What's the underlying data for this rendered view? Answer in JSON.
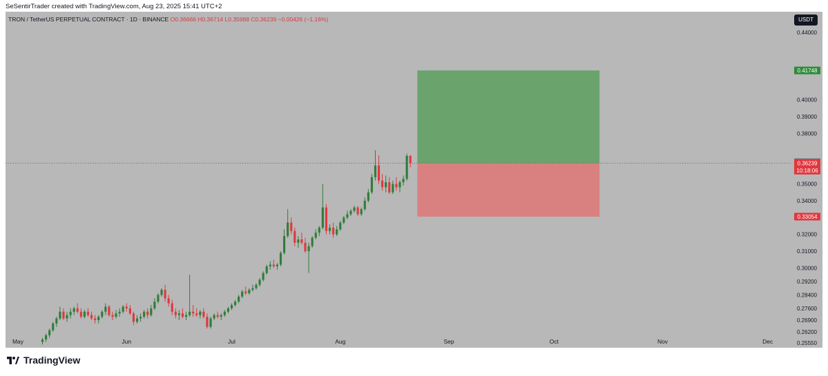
{
  "header": {
    "credit": "SeSentirTrader created with TradingView.com, Aug 23, 2025 15:41 UTC+2"
  },
  "symbol": {
    "title": "TRON / TetherUS PERPETUAL CONTRACT · 1D · BINANCE",
    "ohlc": "O0.36666 H0.36714 L0.35988 C0.36239 −0.00426 (−1.16%)"
  },
  "currency": "USDT",
  "footer": {
    "brand": "TradingView"
  },
  "colors": {
    "up": "#2f7d3a",
    "down": "#e0383f",
    "profit_zone": "#6aa36b",
    "loss_zone": "#d98080",
    "background": "#b8b8b8"
  },
  "chart_data": {
    "type": "candlestick",
    "timeframe": "1D",
    "x_range": [
      "2025-05-01",
      "2025-12-05"
    ],
    "ylim": [
      0.253,
      0.452
    ],
    "x_ticks": [
      {
        "label": "May",
        "date": "2025-05-01"
      },
      {
        "label": "Jun",
        "date": "2025-06-01"
      },
      {
        "label": "Jul",
        "date": "2025-07-01"
      },
      {
        "label": "Aug",
        "date": "2025-08-01"
      },
      {
        "label": "Sep",
        "date": "2025-09-01"
      },
      {
        "label": "Oct",
        "date": "2025-10-01"
      },
      {
        "label": "Nov",
        "date": "2025-11-01"
      },
      {
        "label": "Dec",
        "date": "2025-12-01"
      }
    ],
    "y_ticks": [
      "0.44000",
      "0.40000",
      "0.39000",
      "0.38000",
      "0.35000",
      "0.34000",
      "0.32000",
      "0.31000",
      "0.30000",
      "0.29200",
      "0.28400",
      "0.27600",
      "0.26900",
      "0.26200",
      "0.25550"
    ],
    "price_labels": [
      {
        "value": 0.41748,
        "text": "0.41748",
        "kind": "target"
      },
      {
        "value": 0.36291,
        "text": "0.36291",
        "kind": "reference"
      },
      {
        "value": 0.36239,
        "text": "0.36239",
        "sub": "10:18:06",
        "kind": "last"
      },
      {
        "value": 0.33054,
        "text": "0.33054",
        "kind": "stop"
      }
    ],
    "last_price": 0.36239,
    "position": {
      "start": "2025-08-23",
      "end": "2025-10-14",
      "entry": 0.36239,
      "target": 0.41748,
      "stop": 0.33054
    },
    "start_date": "2025-05-08",
    "candles": [
      [
        0.256,
        0.2585,
        0.2545,
        0.2575
      ],
      [
        0.2575,
        0.261,
        0.256,
        0.26
      ],
      [
        0.26,
        0.264,
        0.2585,
        0.263
      ],
      [
        0.263,
        0.268,
        0.262,
        0.267
      ],
      [
        0.267,
        0.271,
        0.265,
        0.27
      ],
      [
        0.27,
        0.277,
        0.269,
        0.274
      ],
      [
        0.274,
        0.276,
        0.269,
        0.27
      ],
      [
        0.27,
        0.274,
        0.268,
        0.272
      ],
      [
        0.272,
        0.276,
        0.27,
        0.274
      ],
      [
        0.274,
        0.277,
        0.272,
        0.276
      ],
      [
        0.276,
        0.279,
        0.273,
        0.274
      ],
      [
        0.274,
        0.276,
        0.27,
        0.271
      ],
      [
        0.271,
        0.275,
        0.27,
        0.274
      ],
      [
        0.274,
        0.276,
        0.271,
        0.272
      ],
      [
        0.272,
        0.274,
        0.269,
        0.27
      ],
      [
        0.27,
        0.272,
        0.267,
        0.269
      ],
      [
        0.269,
        0.272,
        0.267,
        0.271
      ],
      [
        0.271,
        0.275,
        0.27,
        0.274
      ],
      [
        0.274,
        0.279,
        0.272,
        0.277
      ],
      [
        0.277,
        0.278,
        0.271,
        0.272
      ],
      [
        0.272,
        0.274,
        0.269,
        0.271
      ],
      [
        0.271,
        0.275,
        0.27,
        0.273
      ],
      [
        0.273,
        0.276,
        0.271,
        0.274
      ],
      [
        0.274,
        0.278,
        0.273,
        0.277
      ],
      [
        0.277,
        0.279,
        0.274,
        0.276
      ],
      [
        0.276,
        0.278,
        0.272,
        0.273
      ],
      [
        0.273,
        0.274,
        0.266,
        0.268
      ],
      [
        0.268,
        0.272,
        0.267,
        0.27
      ],
      [
        0.27,
        0.273,
        0.268,
        0.271
      ],
      [
        0.271,
        0.275,
        0.27,
        0.274
      ],
      [
        0.274,
        0.276,
        0.27,
        0.272
      ],
      [
        0.272,
        0.278,
        0.271,
        0.276
      ],
      [
        0.276,
        0.282,
        0.275,
        0.28
      ],
      [
        0.28,
        0.285,
        0.279,
        0.284
      ],
      [
        0.284,
        0.288,
        0.283,
        0.287
      ],
      [
        0.287,
        0.29,
        0.28,
        0.282
      ],
      [
        0.282,
        0.284,
        0.277,
        0.279
      ],
      [
        0.279,
        0.281,
        0.272,
        0.274
      ],
      [
        0.274,
        0.276,
        0.27,
        0.272
      ],
      [
        0.272,
        0.275,
        0.269,
        0.273
      ],
      [
        0.273,
        0.276,
        0.27,
        0.271
      ],
      [
        0.271,
        0.274,
        0.269,
        0.272
      ],
      [
        0.272,
        0.296,
        0.271,
        0.274
      ],
      [
        0.274,
        0.278,
        0.271,
        0.273
      ],
      [
        0.273,
        0.276,
        0.271,
        0.272
      ],
      [
        0.272,
        0.275,
        0.27,
        0.274
      ],
      [
        0.274,
        0.276,
        0.27,
        0.271
      ],
      [
        0.271,
        0.273,
        0.264,
        0.265
      ],
      [
        0.265,
        0.271,
        0.264,
        0.27
      ],
      [
        0.27,
        0.273,
        0.269,
        0.272
      ],
      [
        0.272,
        0.274,
        0.27,
        0.271
      ],
      [
        0.271,
        0.273,
        0.269,
        0.272
      ],
      [
        0.272,
        0.275,
        0.271,
        0.274
      ],
      [
        0.274,
        0.277,
        0.273,
        0.276
      ],
      [
        0.276,
        0.279,
        0.275,
        0.278
      ],
      [
        0.278,
        0.281,
        0.277,
        0.28
      ],
      [
        0.28,
        0.284,
        0.279,
        0.283
      ],
      [
        0.283,
        0.287,
        0.282,
        0.286
      ],
      [
        0.286,
        0.289,
        0.284,
        0.285
      ],
      [
        0.285,
        0.288,
        0.284,
        0.287
      ],
      [
        0.287,
        0.29,
        0.286,
        0.288
      ],
      [
        0.288,
        0.291,
        0.287,
        0.29
      ],
      [
        0.29,
        0.294,
        0.289,
        0.293
      ],
      [
        0.293,
        0.298,
        0.292,
        0.297
      ],
      [
        0.297,
        0.302,
        0.296,
        0.301
      ],
      [
        0.301,
        0.304,
        0.299,
        0.302
      ],
      [
        0.302,
        0.305,
        0.3,
        0.301
      ],
      [
        0.301,
        0.303,
        0.299,
        0.302
      ],
      [
        0.302,
        0.31,
        0.301,
        0.309
      ],
      [
        0.309,
        0.323,
        0.308,
        0.319
      ],
      [
        0.319,
        0.335,
        0.318,
        0.327
      ],
      [
        0.327,
        0.33,
        0.32,
        0.322
      ],
      [
        0.322,
        0.324,
        0.313,
        0.315
      ],
      [
        0.315,
        0.319,
        0.312,
        0.317
      ],
      [
        0.317,
        0.321,
        0.314,
        0.315
      ],
      [
        0.315,
        0.318,
        0.309,
        0.31
      ],
      [
        0.31,
        0.315,
        0.297,
        0.313
      ],
      [
        0.313,
        0.319,
        0.312,
        0.318
      ],
      [
        0.318,
        0.323,
        0.317,
        0.321
      ],
      [
        0.321,
        0.325,
        0.319,
        0.324
      ],
      [
        0.324,
        0.35,
        0.323,
        0.336
      ],
      [
        0.336,
        0.338,
        0.32,
        0.322
      ],
      [
        0.322,
        0.326,
        0.32,
        0.324
      ],
      [
        0.324,
        0.327,
        0.318,
        0.32
      ],
      [
        0.32,
        0.325,
        0.319,
        0.323
      ],
      [
        0.323,
        0.328,
        0.322,
        0.327
      ],
      [
        0.327,
        0.331,
        0.326,
        0.33
      ],
      [
        0.33,
        0.334,
        0.329,
        0.332
      ],
      [
        0.332,
        0.335,
        0.331,
        0.334
      ],
      [
        0.334,
        0.337,
        0.333,
        0.336
      ],
      [
        0.336,
        0.337,
        0.331,
        0.332
      ],
      [
        0.332,
        0.336,
        0.331,
        0.335
      ],
      [
        0.335,
        0.342,
        0.334,
        0.34
      ],
      [
        0.34,
        0.347,
        0.339,
        0.345
      ],
      [
        0.345,
        0.356,
        0.344,
        0.354
      ],
      [
        0.354,
        0.37,
        0.352,
        0.361
      ],
      [
        0.361,
        0.367,
        0.35,
        0.352
      ],
      [
        0.352,
        0.356,
        0.346,
        0.348
      ],
      [
        0.348,
        0.355,
        0.345,
        0.351
      ],
      [
        0.351,
        0.354,
        0.344,
        0.345
      ],
      [
        0.345,
        0.352,
        0.344,
        0.35
      ],
      [
        0.35,
        0.354,
        0.346,
        0.348
      ],
      [
        0.348,
        0.352,
        0.345,
        0.351
      ],
      [
        0.351,
        0.355,
        0.349,
        0.353
      ],
      [
        0.353,
        0.368,
        0.352,
        0.3667
      ],
      [
        0.3667,
        0.3671,
        0.3599,
        0.3624
      ]
    ]
  }
}
